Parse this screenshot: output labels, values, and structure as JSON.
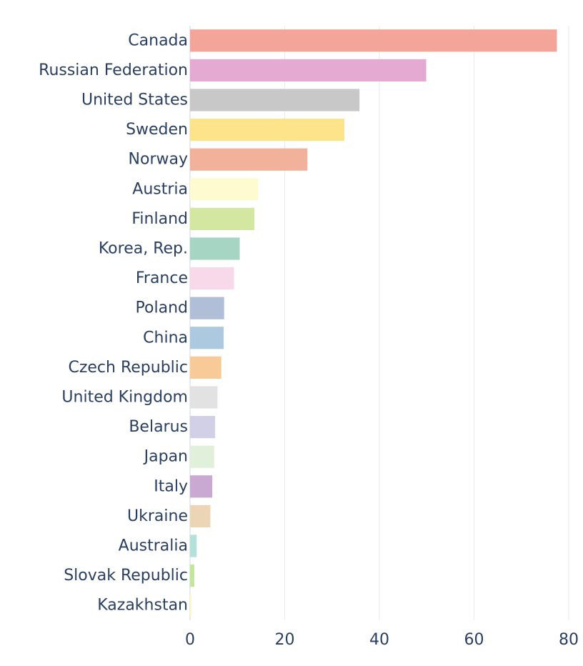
{
  "chart_data": {
    "type": "bar",
    "orientation": "horizontal",
    "title": "",
    "xlabel": "",
    "ylabel": "",
    "xlim": [
      0,
      80
    ],
    "x_ticks": [
      0,
      20,
      40,
      60,
      80
    ],
    "x_tick_labels": [
      "0",
      "20",
      "40",
      "60",
      "80"
    ],
    "grid": true,
    "legend": "none",
    "categories": [
      "Canada",
      "Russian Federation",
      "United States",
      "Sweden",
      "Norway",
      "Austria",
      "Finland",
      "Korea, Rep.",
      "France",
      "Poland",
      "China",
      "Czech Republic",
      "United Kingdom",
      "Belarus",
      "Japan",
      "Italy",
      "Ukraine",
      "Australia",
      "Slovak Republic",
      "Kazakhstan"
    ],
    "values": [
      77.5,
      49.9,
      35.8,
      32.6,
      24.8,
      14.4,
      13.6,
      10.5,
      9.3,
      7.2,
      7.1,
      6.6,
      5.8,
      5.3,
      5.1,
      4.7,
      4.3,
      1.4,
      0.9,
      0.3
    ],
    "colors": [
      "#f4a59a",
      "#e5aad2",
      "#c8c8c8",
      "#fde38a",
      "#f2b19a",
      "#fffbd1",
      "#d3e7a1",
      "#a7d5c3",
      "#f8d9ea",
      "#b1bed8",
      "#adc9e0",
      "#f7ca98",
      "#e2e2e2",
      "#d1d0e6",
      "#e0f0da",
      "#c9a8d2",
      "#ecd5b4",
      "#b6e0da",
      "#c2e69a",
      "#fff6cc"
    ],
    "grid_color": "#e7eaf1",
    "text_color": "#2a3f5f"
  }
}
